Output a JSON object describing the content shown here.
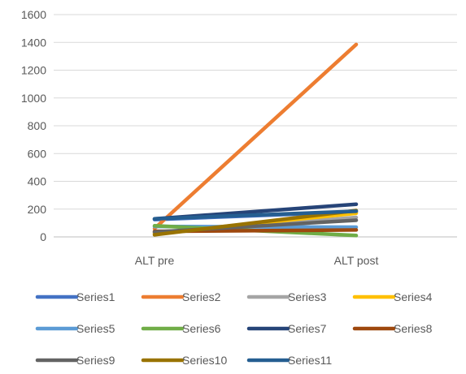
{
  "chart_data": {
    "type": "line",
    "title": "",
    "xlabel": "",
    "ylabel": "",
    "categories": [
      "ALT pre",
      "ALT post"
    ],
    "ylim": [
      0,
      1600
    ],
    "yticks": [
      0,
      200,
      400,
      600,
      800,
      1000,
      1200,
      1400,
      1600
    ],
    "grid": true,
    "legend_position": "bottom",
    "series": [
      {
        "name": "Series1",
        "color": "#4472C4",
        "values": [
          125,
          180
        ]
      },
      {
        "name": "Series2",
        "color": "#ED7D31",
        "values": [
          60,
          1385
        ]
      },
      {
        "name": "Series3",
        "color": "#A5A5A5",
        "values": [
          30,
          140
        ]
      },
      {
        "name": "Series4",
        "color": "#FFC000",
        "values": [
          25,
          170
        ]
      },
      {
        "name": "Series5",
        "color": "#5B9BD5",
        "values": [
          75,
          70
        ]
      },
      {
        "name": "Series6",
        "color": "#70AD47",
        "values": [
          80,
          10
        ]
      },
      {
        "name": "Series7",
        "color": "#264478",
        "values": [
          130,
          235
        ]
      },
      {
        "name": "Series8",
        "color": "#9E480E",
        "values": [
          40,
          50
        ]
      },
      {
        "name": "Series9",
        "color": "#636363",
        "values": [
          35,
          120
        ]
      },
      {
        "name": "Series10",
        "color": "#997300",
        "values": [
          15,
          190
        ]
      },
      {
        "name": "Series11",
        "color": "#255E91",
        "values": [
          130,
          185
        ]
      }
    ]
  }
}
